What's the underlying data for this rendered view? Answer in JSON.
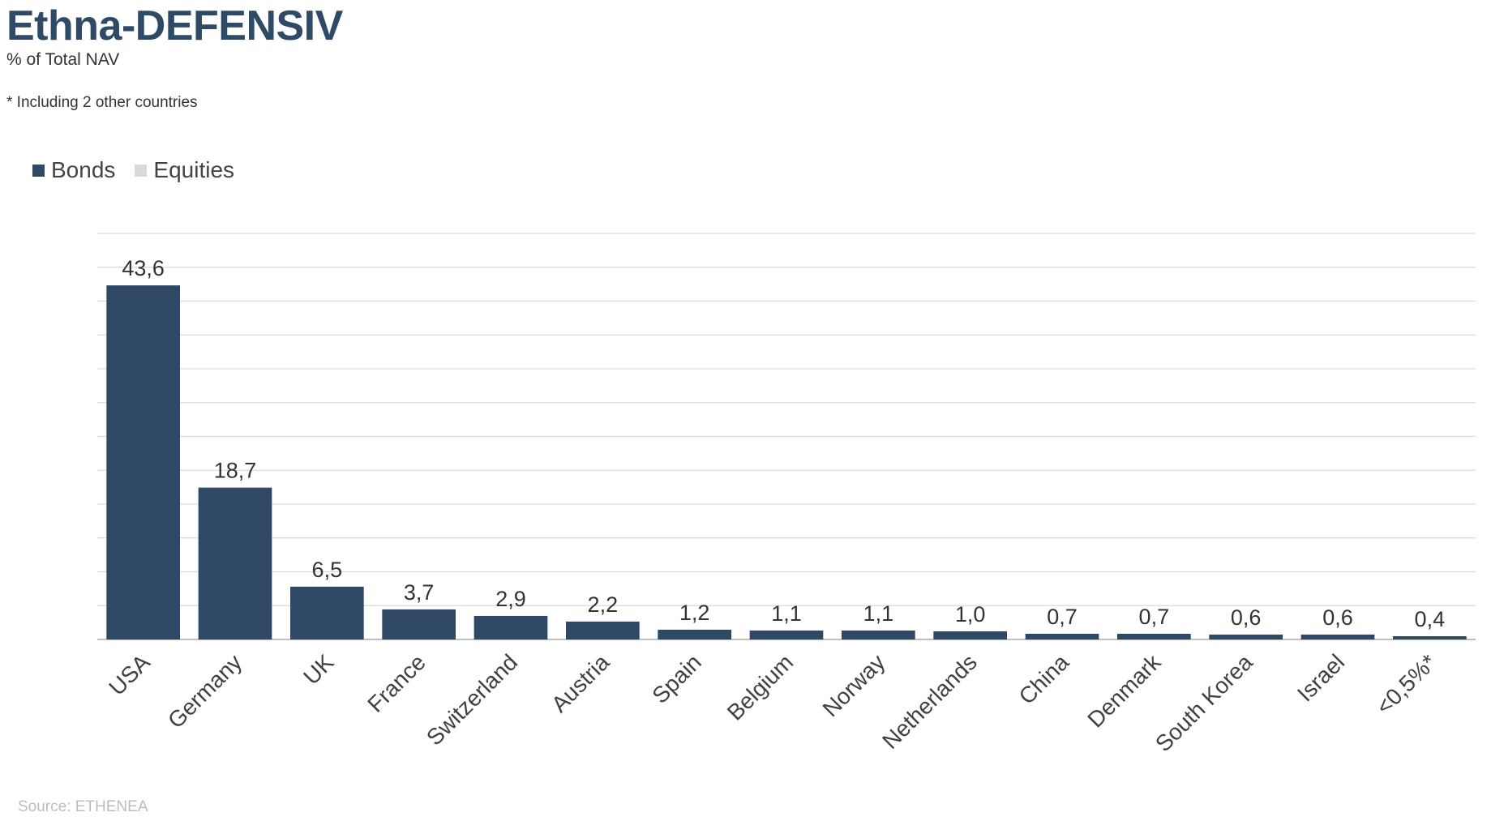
{
  "header": {
    "title": "Ethna-DEFENSIV",
    "subtitle": "% of Total NAV",
    "footnote": "* Including 2 other countries"
  },
  "legend": [
    {
      "label": "Bonds",
      "color": "#2e4866"
    },
    {
      "label": "Equities",
      "color": "#d9d9d9"
    }
  ],
  "source": "Source: ETHENEA",
  "chart_data": {
    "type": "bar",
    "title": "Ethna-DEFENSIV",
    "ylabel": "",
    "xlabel": "",
    "categories": [
      "USA",
      "Germany",
      "UK",
      "France",
      "Switzerland",
      "Austria",
      "Spain",
      "Belgium",
      "Norway",
      "Netherlands",
      "China",
      "Denmark",
      "South Korea",
      "Israel",
      "<0,5%*"
    ],
    "series": [
      {
        "name": "Bonds",
        "color": "#2e4866",
        "values": [
          43.6,
          18.7,
          6.5,
          3.7,
          2.9,
          2.2,
          1.2,
          1.1,
          1.1,
          1.0,
          0.7,
          0.7,
          0.6,
          0.6,
          0.4
        ]
      },
      {
        "name": "Equities",
        "color": "#d9d9d9",
        "values": [
          0,
          0,
          0,
          0,
          0,
          0,
          0,
          0,
          0,
          0,
          0,
          0,
          0,
          0,
          0
        ]
      }
    ],
    "data_labels": [
      "43,6",
      "18,7",
      "6,5",
      "3,7",
      "2,9",
      "2,2",
      "1,2",
      "1,1",
      "1,1",
      "1,0",
      "0,7",
      "0,7",
      "0,6",
      "0,6",
      "0,4"
    ],
    "ylim": [
      0,
      50
    ],
    "grid": true,
    "legend_position": "top-left"
  }
}
